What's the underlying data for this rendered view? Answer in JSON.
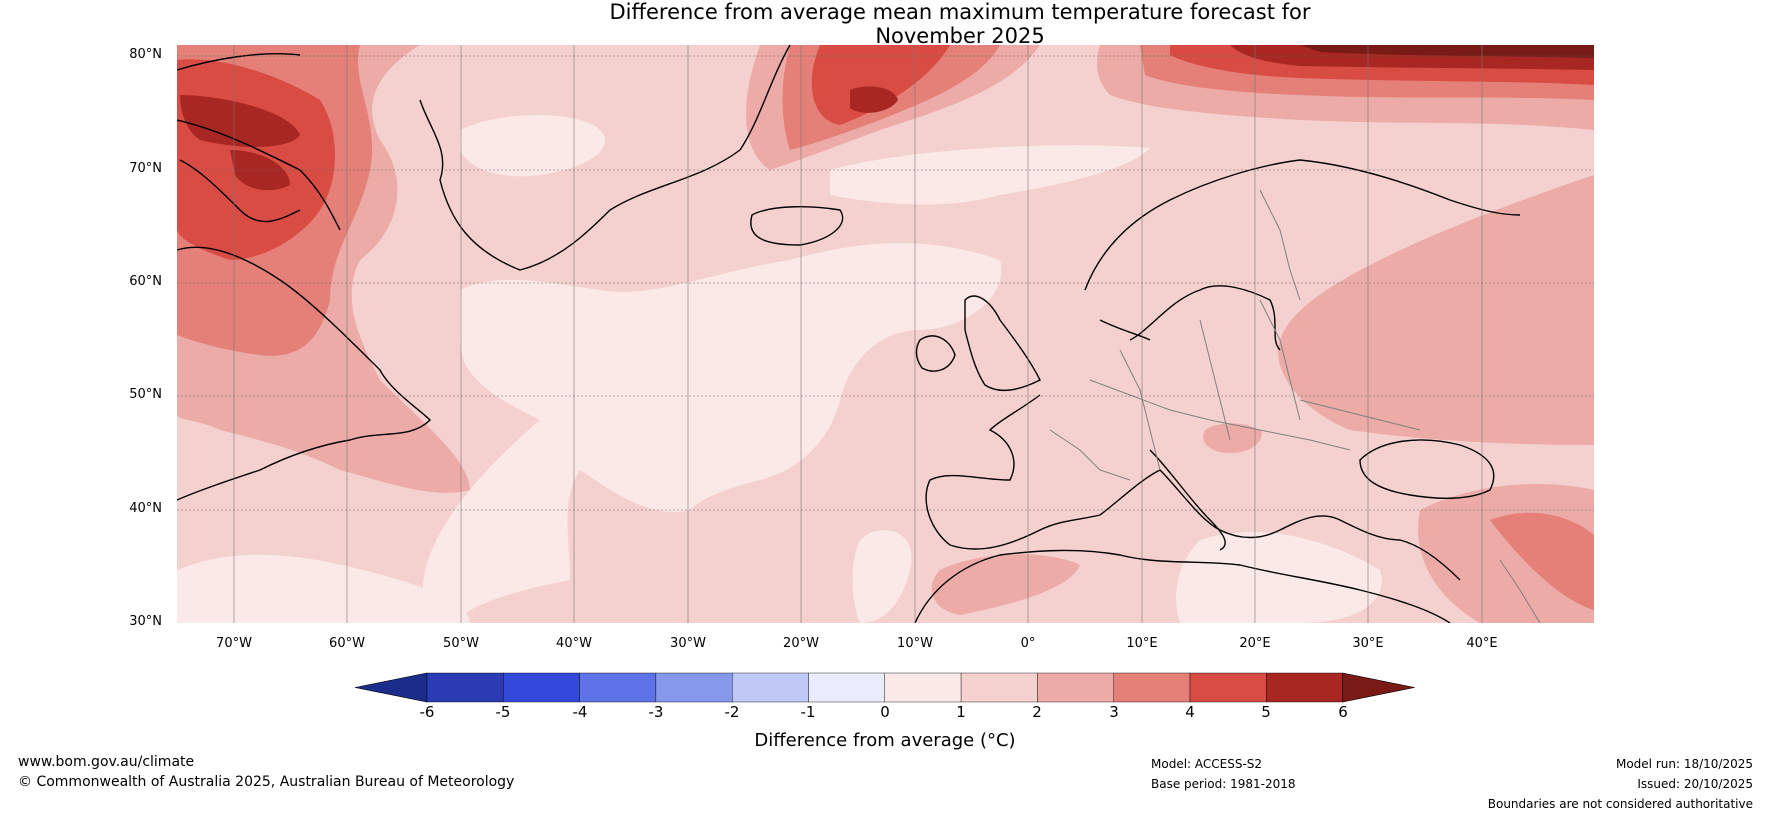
{
  "title_line1": "Difference from average mean maximum temperature forecast for",
  "title_line2": "November 2025",
  "latitude_labels": [
    "80°N",
    "70°N",
    "60°N",
    "50°N",
    "40°N",
    "30°N"
  ],
  "longitude_labels": [
    "70°W",
    "60°W",
    "50°W",
    "40°W",
    "30°W",
    "20°W",
    "10°W",
    "0°",
    "10°E",
    "20°E",
    "30°E",
    "40°E"
  ],
  "map": {
    "lat_range": [
      30,
      80
    ],
    "lon_range": [
      -75,
      50
    ],
    "regions_description_colors": {
      "0_to_1": "#fbe9e7",
      "1_to_2": "#f4d1ce",
      "2_to_3": "#ecaba7",
      "3_to_4": "#e48078",
      "4_to_5": "#d94c43",
      "5_to_6": "#a92723",
      "above_6": "#7a1a16"
    },
    "land_outline_color": "#000000",
    "border_color": "#808080"
  },
  "colorbar": {
    "ticks": [
      "-6",
      "-5",
      "-4",
      "-3",
      "-2",
      "-1",
      "0",
      "1",
      "2",
      "3",
      "4",
      "5",
      "6"
    ],
    "colors": [
      "#1b2c8a",
      "#2b3bb3",
      "#3349d9",
      "#5e73e6",
      "#8598ec",
      "#c0c8f5",
      "#e8ecfc",
      "#fbe9e7",
      "#f4d1ce",
      "#ecaba7",
      "#e48078",
      "#d94c43",
      "#a92723",
      "#7a1a16"
    ],
    "label": "Difference from average (°C)"
  },
  "footer": {
    "website": "www.bom.gov.au/climate",
    "copyright": "© Commonwealth of Australia 2025, Australian Bureau of Meteorology",
    "model": "Model: ACCESS-S2",
    "base_period": "Base period: 1981-2018",
    "model_run": "Model run: 18/10/2025",
    "issued": "Issued: 20/10/2025",
    "disclaimer": "Boundaries are not considered authoritative"
  }
}
